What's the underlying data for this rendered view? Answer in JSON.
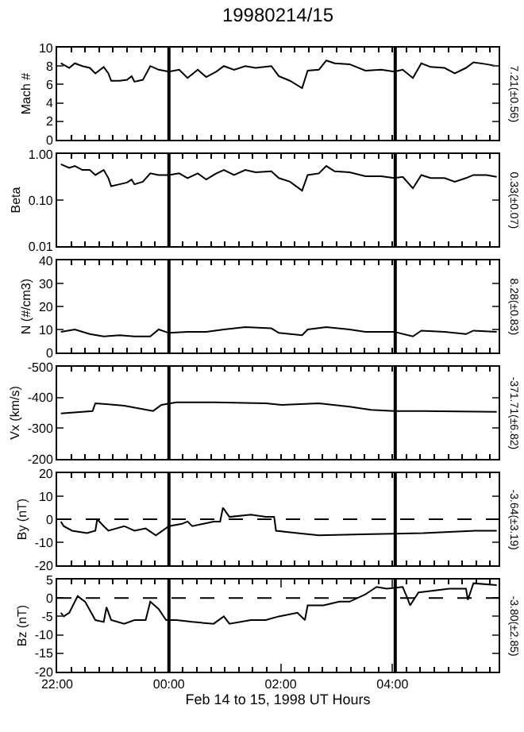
{
  "chart_data": [
    {
      "type": "line",
      "title": "19980214/15",
      "ylabel": "Mach #",
      "annotations": [
        "7.21(±0.56)"
      ],
      "xlim": [
        "1998-02-14T22:00",
        "1998-02-15T05:54"
      ],
      "xticks": [
        {
          "value": "1998-02-14T22:00",
          "label": null
        },
        {
          "value": "1998-02-15T00:00",
          "label": null
        },
        {
          "value": "1998-02-15T02:00",
          "label": null
        },
        {
          "value": "1998-02-15T04:00",
          "label": null
        }
      ],
      "ylim": [
        0,
        10
      ],
      "yticks": [
        0,
        2,
        4,
        6,
        8,
        10
      ],
      "tick_labels": "y",
      "grid": false,
      "x": [
        "1998-02-14T22:04",
        "1998-02-14T22:13",
        "1998-02-14T22:19",
        "1998-02-14T22:27",
        "1998-02-14T22:35",
        "1998-02-14T22:41",
        "1998-02-14T22:50",
        "1998-02-14T22:55",
        "1998-02-14T22:58",
        "1998-02-14T23:07",
        "1998-02-14T23:15",
        "1998-02-14T23:20",
        "1998-02-14T23:23",
        "1998-02-14T23:32",
        "1998-02-14T23:40",
        "1998-02-14T23:49",
        "1998-02-15T00:00",
        "1998-02-15T00:11",
        "1998-02-15T00:20",
        "1998-02-15T00:31",
        "1998-02-15T00:40",
        "1998-02-15T00:51",
        "1998-02-15T00:59",
        "1998-02-15T01:10",
        "1998-02-15T01:22",
        "1998-02-15T01:33",
        "1998-02-15T01:50",
        "1998-02-15T01:58",
        "1998-02-15T02:10",
        "1998-02-15T02:23",
        "1998-02-15T02:29",
        "1998-02-15T02:41",
        "1998-02-15T02:49",
        "1998-02-15T02:58",
        "1998-02-15T03:14",
        "1998-02-15T03:31",
        "1998-02-15T03:48",
        "1998-02-15T04:02",
        "1998-02-15T04:11",
        "1998-02-15T04:22",
        "1998-02-15T04:31",
        "1998-02-15T04:41",
        "1998-02-15T04:56",
        "1998-02-15T05:07",
        "1998-02-15T05:19",
        "1998-02-15T05:27",
        "1998-02-15T05:41",
        "1998-02-15T05:52"
      ],
      "series": [
        {
          "color": "#000000",
          "values": [
            8.3,
            7.8,
            8.3,
            8.0,
            7.8,
            7.2,
            7.9,
            7.2,
            6.4,
            6.4,
            6.5,
            6.9,
            6.3,
            6.5,
            8.0,
            7.6,
            7.4,
            7.6,
            6.7,
            7.6,
            6.8,
            7.4,
            8.0,
            7.6,
            8.0,
            7.8,
            8.0,
            6.9,
            6.4,
            5.6,
            7.5,
            7.6,
            8.6,
            8.3,
            8.2,
            7.5,
            7.6,
            7.4,
            7.6,
            6.7,
            8.3,
            7.9,
            7.8,
            7.2,
            7.8,
            8.4,
            8.2,
            8.0
          ]
        }
      ],
      "ref_lines": [
        {
          "axis": "x",
          "value": "1998-02-15T00:00",
          "color": "#000000",
          "line_style": "solid"
        },
        {
          "axis": "x",
          "value": "1998-02-15T04:03",
          "color": "#000000",
          "line_style": "solid"
        }
      ]
    },
    {
      "type": "line",
      "ylabel": "Beta",
      "annotations": [
        "0.33(±0.07)"
      ],
      "log": "y",
      "xlim": [
        "1998-02-14T22:00",
        "1998-02-15T05:54"
      ],
      "xticks": [
        {
          "value": "1998-02-14T22:00",
          "label": null
        },
        {
          "value": "1998-02-15T00:00",
          "label": null
        },
        {
          "value": "1998-02-15T02:00",
          "label": null
        },
        {
          "value": "1998-02-15T04:00",
          "label": null
        }
      ],
      "ylim": [
        0.01,
        1
      ],
      "yticks": [
        {
          "value": 0.01,
          "label": "0.01"
        },
        {
          "value": 0.1,
          "label": "0.10"
        },
        {
          "value": 1,
          "label": "1.00"
        }
      ],
      "tick_labels": "y",
      "grid": false,
      "x": [
        "1998-02-14T22:04",
        "1998-02-14T22:13",
        "1998-02-14T22:19",
        "1998-02-14T22:27",
        "1998-02-14T22:35",
        "1998-02-14T22:41",
        "1998-02-14T22:50",
        "1998-02-14T22:55",
        "1998-02-14T22:58",
        "1998-02-14T23:07",
        "1998-02-14T23:15",
        "1998-02-14T23:20",
        "1998-02-14T23:23",
        "1998-02-14T23:32",
        "1998-02-14T23:40",
        "1998-02-14T23:49",
        "1998-02-15T00:00",
        "1998-02-15T00:11",
        "1998-02-15T00:20",
        "1998-02-15T00:31",
        "1998-02-15T00:40",
        "1998-02-15T00:51",
        "1998-02-15T00:59",
        "1998-02-15T01:10",
        "1998-02-15T01:22",
        "1998-02-15T01:33",
        "1998-02-15T01:50",
        "1998-02-15T01:58",
        "1998-02-15T02:10",
        "1998-02-15T02:23",
        "1998-02-15T02:29",
        "1998-02-15T02:41",
        "1998-02-15T02:49",
        "1998-02-15T02:58",
        "1998-02-15T03:14",
        "1998-02-15T03:31",
        "1998-02-15T03:48",
        "1998-02-15T04:02",
        "1998-02-15T04:11",
        "1998-02-15T04:22",
        "1998-02-15T04:31",
        "1998-02-15T04:41",
        "1998-02-15T04:56",
        "1998-02-15T05:07",
        "1998-02-15T05:19",
        "1998-02-15T05:27",
        "1998-02-15T05:41",
        "1998-02-15T05:52"
      ],
      "series": [
        {
          "color": "#000000",
          "values": [
            0.6,
            0.5,
            0.55,
            0.45,
            0.45,
            0.35,
            0.45,
            0.3,
            0.2,
            0.22,
            0.24,
            0.28,
            0.22,
            0.25,
            0.38,
            0.35,
            0.35,
            0.38,
            0.3,
            0.38,
            0.28,
            0.38,
            0.45,
            0.35,
            0.45,
            0.4,
            0.42,
            0.3,
            0.25,
            0.16,
            0.35,
            0.38,
            0.55,
            0.42,
            0.4,
            0.33,
            0.33,
            0.3,
            0.32,
            0.18,
            0.35,
            0.3,
            0.3,
            0.25,
            0.3,
            0.35,
            0.35,
            0.32
          ]
        }
      ],
      "ref_lines": [
        {
          "axis": "x",
          "value": "1998-02-15T00:00",
          "color": "#000000",
          "line_style": "solid"
        },
        {
          "axis": "x",
          "value": "1998-02-15T04:03",
          "color": "#000000",
          "line_style": "solid"
        }
      ]
    },
    {
      "type": "line",
      "ylabel": "N (#/cm3)",
      "annotations": [
        "8.28(±0.83)"
      ],
      "xlim": [
        "1998-02-14T22:00",
        "1998-02-15T05:54"
      ],
      "xticks": [
        {
          "value": "1998-02-14T22:00",
          "label": null
        },
        {
          "value": "1998-02-15T00:00",
          "label": null
        },
        {
          "value": "1998-02-15T02:00",
          "label": null
        },
        {
          "value": "1998-02-15T04:00",
          "label": null
        }
      ],
      "ylim": [
        0,
        40
      ],
      "yticks": [
        0,
        10,
        20,
        30,
        40
      ],
      "tick_labels": "y",
      "grid": false,
      "x": [
        "1998-02-14T22:04",
        "1998-02-14T22:19",
        "1998-02-14T22:35",
        "1998-02-14T22:50",
        "1998-02-14T23:07",
        "1998-02-14T23:23",
        "1998-02-14T23:40",
        "1998-02-14T23:49",
        "1998-02-15T00:00",
        "1998-02-15T00:20",
        "1998-02-15T00:40",
        "1998-02-15T00:59",
        "1998-02-15T01:22",
        "1998-02-15T01:50",
        "1998-02-15T01:58",
        "1998-02-15T02:23",
        "1998-02-15T02:29",
        "1998-02-15T02:49",
        "1998-02-15T03:14",
        "1998-02-15T03:31",
        "1998-02-15T04:02",
        "1998-02-15T04:22",
        "1998-02-15T04:31",
        "1998-02-15T04:56",
        "1998-02-15T05:19",
        "1998-02-15T05:27",
        "1998-02-15T05:52"
      ],
      "series": [
        {
          "color": "#000000",
          "values": [
            9,
            10,
            8,
            7,
            7.5,
            7,
            7,
            10,
            8.5,
            9,
            9,
            10,
            11,
            10.5,
            8.5,
            7.5,
            10,
            11,
            10,
            9,
            9,
            7,
            9.5,
            9,
            8,
            9.5,
            9
          ]
        }
      ],
      "ref_lines": [
        {
          "axis": "x",
          "value": "1998-02-15T00:00",
          "color": "#000000",
          "line_style": "solid"
        },
        {
          "axis": "x",
          "value": "1998-02-15T04:03",
          "color": "#000000",
          "line_style": "solid"
        }
      ]
    },
    {
      "type": "line",
      "ylabel": "Vx (km/s)",
      "annotations": [
        "-371.71(±6.82)"
      ],
      "xlim": [
        "1998-02-14T22:00",
        "1998-02-15T05:54"
      ],
      "xticks": [
        {
          "value": "1998-02-14T22:00",
          "label": null
        },
        {
          "value": "1998-02-15T00:00",
          "label": null
        },
        {
          "value": "1998-02-15T02:00",
          "label": null
        },
        {
          "value": "1998-02-15T04:00",
          "label": null
        }
      ],
      "ylim": [
        -200,
        -500
      ],
      "yticks": [
        -500,
        -400,
        -300,
        -200
      ],
      "tick_labels": "y",
      "grid": false,
      "x": [
        "1998-02-14T22:04",
        "1998-02-14T22:38",
        "1998-02-14T22:41",
        "1998-02-14T22:55",
        "1998-02-14T23:12",
        "1998-02-14T23:43",
        "1998-02-14T23:52",
        "1998-02-15T00:08",
        "1998-02-15T00:48",
        "1998-02-15T01:44",
        "1998-02-15T02:01",
        "1998-02-15T02:41",
        "1998-02-15T03:14",
        "1998-02-15T03:37",
        "1998-02-15T04:02",
        "1998-02-15T04:33",
        "1998-02-15T05:52"
      ],
      "series": [
        {
          "color": "#000000",
          "values": [
            -348,
            -356,
            -381,
            -378,
            -373,
            -356,
            -376,
            -384,
            -384,
            -381,
            -376,
            -381,
            -370,
            -360,
            -356,
            -356,
            -353
          ]
        }
      ],
      "ref_lines": [
        {
          "axis": "x",
          "value": "1998-02-15T00:00",
          "color": "#000000",
          "line_style": "solid"
        },
        {
          "axis": "x",
          "value": "1998-02-15T04:03",
          "color": "#000000",
          "line_style": "solid"
        }
      ]
    },
    {
      "type": "line",
      "ylabel": "By (nT)",
      "annotations": [
        "-3.64(±3.19)"
      ],
      "xlim": [
        "1998-02-14T22:00",
        "1998-02-15T05:54"
      ],
      "xticks": [
        {
          "value": "1998-02-14T22:00",
          "label": null
        },
        {
          "value": "1998-02-15T00:00",
          "label": null
        },
        {
          "value": "1998-02-15T02:00",
          "label": null
        },
        {
          "value": "1998-02-15T04:00",
          "label": null
        }
      ],
      "ylim": [
        -20,
        20
      ],
      "yticks": [
        -20,
        -10,
        0,
        10,
        20
      ],
      "tick_labels": "y",
      "grid": false,
      "x": [
        "1998-02-14T22:04",
        "1998-02-14T22:07",
        "1998-02-14T22:16",
        "1998-02-14T22:32",
        "1998-02-14T22:41",
        "1998-02-14T22:43",
        "1998-02-14T22:50",
        "1998-02-14T22:55",
        "1998-02-14T23:12",
        "1998-02-14T23:23",
        "1998-02-14T23:35",
        "1998-02-14T23:46",
        "1998-02-15T00:00",
        "1998-02-15T00:14",
        "1998-02-15T00:20",
        "1998-02-15T00:25",
        "1998-02-15T00:37",
        "1998-02-15T00:48",
        "1998-02-15T00:55",
        "1998-02-15T00:58",
        "1998-02-15T01:05",
        "1998-02-15T01:28",
        "1998-02-15T01:44",
        "1998-02-15T01:53",
        "1998-02-15T01:55",
        "1998-02-15T02:18",
        "1998-02-15T02:41",
        "1998-02-15T03:37",
        "1998-02-15T04:33",
        "1998-02-15T05:29",
        "1998-02-15T05:52"
      ],
      "series": [
        {
          "color": "#000000",
          "values": [
            -1,
            -3,
            -5,
            -6,
            -5,
            0,
            -3,
            -5,
            -3,
            -5,
            -4,
            -7,
            -3,
            -2,
            -1,
            -3,
            -2,
            -1,
            -1,
            5,
            1,
            2,
            1,
            1,
            -5,
            -6,
            -7,
            -6.5,
            -6,
            -5,
            -5
          ]
        }
      ],
      "ref_lines": [
        {
          "axis": "x",
          "value": "1998-02-15T00:00",
          "color": "#000000",
          "line_style": "solid"
        },
        {
          "axis": "x",
          "value": "1998-02-15T04:03",
          "color": "#000000",
          "line_style": "solid"
        },
        {
          "axis": "y",
          "value": 0,
          "color": "#000000",
          "line_style": "dashed"
        }
      ]
    },
    {
      "type": "line",
      "ylabel": "Bz (nT)",
      "xlabel": "Feb 14 to 15, 1998 UT Hours",
      "annotations": [
        "-3.80(±2.85)"
      ],
      "xlim": [
        "1998-02-14T22:00",
        "1998-02-15T05:54"
      ],
      "xticks": [
        {
          "value": "1998-02-14T22:00",
          "label": "22:00"
        },
        {
          "value": "1998-02-15T00:00",
          "label": "00:00"
        },
        {
          "value": "1998-02-15T02:00",
          "label": "02:00"
        },
        {
          "value": "1998-02-15T04:00",
          "label": "04:00"
        }
      ],
      "ylim": [
        -20,
        5
      ],
      "yticks": [
        -20,
        -15,
        -10,
        -5,
        0,
        5
      ],
      "grid": false,
      "x": [
        "1998-02-14T22:04",
        "1998-02-14T22:07",
        "1998-02-14T22:13",
        "1998-02-14T22:22",
        "1998-02-14T22:30",
        "1998-02-14T22:41",
        "1998-02-14T22:50",
        "1998-02-14T22:53",
        "1998-02-14T22:58",
        "1998-02-14T23:12",
        "1998-02-14T23:23",
        "1998-02-14T23:35",
        "1998-02-14T23:40",
        "1998-02-14T23:49",
        "1998-02-14T23:57",
        "1998-02-15T00:08",
        "1998-02-15T00:25",
        "1998-02-15T00:48",
        "1998-02-15T00:59",
        "1998-02-15T01:05",
        "1998-02-15T01:28",
        "1998-02-15T01:44",
        "1998-02-15T01:58",
        "1998-02-15T02:18",
        "1998-02-15T02:26",
        "1998-02-15T02:29",
        "1998-02-15T02:46",
        "1998-02-15T03:03",
        "1998-02-15T03:14",
        "1998-02-15T03:31",
        "1998-02-15T03:43",
        "1998-02-15T03:54",
        "1998-02-15T04:11",
        "1998-02-15T04:16",
        "1998-02-15T04:19",
        "1998-02-15T04:28",
        "1998-02-15T04:44",
        "1998-02-15T05:01",
        "1998-02-15T05:19",
        "1998-02-15T05:21",
        "1998-02-15T05:27",
        "1998-02-15T05:52"
      ],
      "series": [
        {
          "color": "#000000",
          "values": [
            -4,
            -5,
            -4,
            0.5,
            -1,
            -6,
            -6.5,
            -2.5,
            -6,
            -7,
            -6,
            -6,
            -1,
            -3,
            -6,
            -6,
            -6.5,
            -7,
            -5,
            -7,
            -6,
            -6,
            -5,
            -4,
            -6,
            -2,
            -2,
            -1,
            -1,
            1,
            3,
            2.5,
            3,
            0,
            -2,
            1.5,
            2,
            2.5,
            2.5,
            -0.5,
            4,
            3.5
          ]
        }
      ],
      "ref_lines": [
        {
          "axis": "x",
          "value": "1998-02-15T00:00",
          "color": "#000000",
          "line_style": "solid"
        },
        {
          "axis": "x",
          "value": "1998-02-15T04:03",
          "color": "#000000",
          "line_style": "solid"
        },
        {
          "axis": "y",
          "value": 0,
          "color": "#000000",
          "line_style": "dashed"
        }
      ]
    }
  ]
}
